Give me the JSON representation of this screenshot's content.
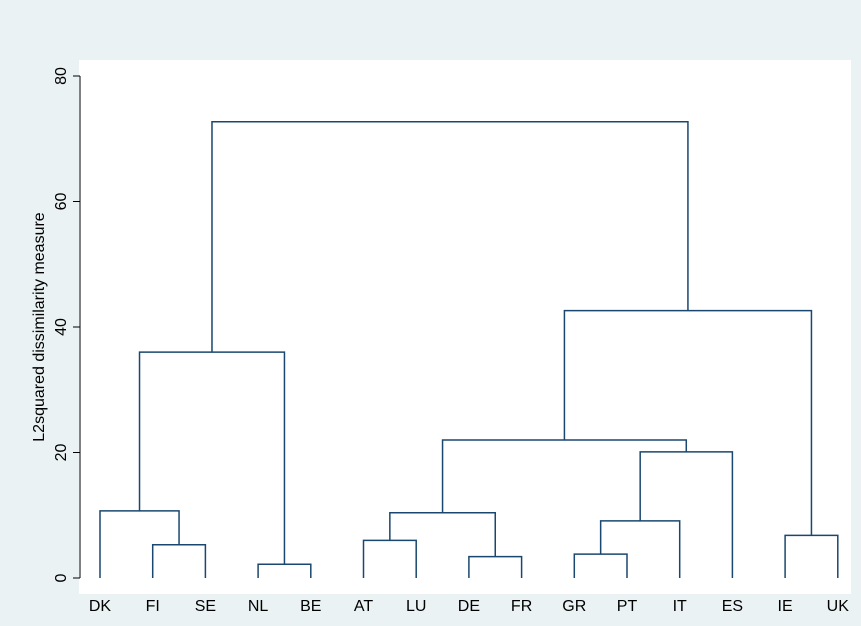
{
  "chart_data": {
    "type": "dendrogram",
    "ylabel": "L2squared dissimilarity measure",
    "ylim": [
      0,
      80
    ],
    "yticks": [
      0,
      20,
      40,
      60,
      80
    ],
    "color": "#1a476f",
    "tree": {
      "height": 72.7,
      "children": [
        {
          "height": 36.0,
          "children": [
            {
              "height": 10.7,
              "children": [
                "DK",
                {
                  "height": 5.3,
                  "children": [
                    "FI",
                    "SE"
                  ]
                }
              ]
            },
            {
              "height": 2.2,
              "children": [
                "NL",
                "BE"
              ]
            }
          ]
        },
        {
          "height": 42.6,
          "children": [
            {
              "height": 22.0,
              "children": [
                {
                  "height": 10.4,
                  "children": [
                    {
                      "height": 6.0,
                      "children": [
                        "AT",
                        "LU"
                      ]
                    },
                    {
                      "height": 3.4,
                      "children": [
                        "DE",
                        "FR"
                      ]
                    }
                  ]
                },
                {
                  "height": 20.1,
                  "children": [
                    {
                      "height": 9.1,
                      "children": [
                        {
                          "height": 3.8,
                          "children": [
                            "GR",
                            "PT"
                          ]
                        },
                        "IT"
                      ]
                    },
                    "ES"
                  ]
                }
              ]
            },
            {
              "height": 6.8,
              "children": [
                "IE",
                "UK"
              ]
            }
          ]
        }
      ]
    }
  }
}
